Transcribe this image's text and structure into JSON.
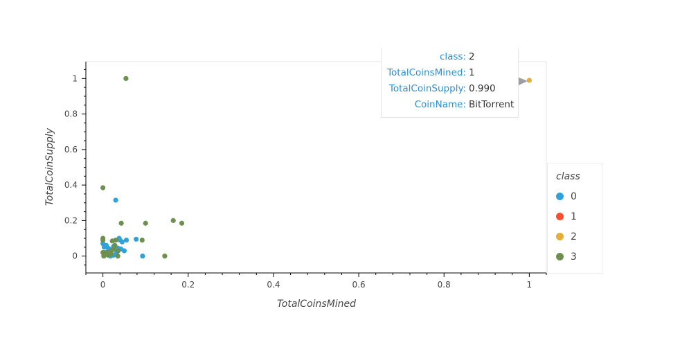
{
  "chart_data": {
    "type": "scatter",
    "title": "",
    "xlabel": "TotalCoinsMined",
    "ylabel": "TotalCoinSupply",
    "xlim": [
      -0.04,
      1.04
    ],
    "ylim": [
      -0.095,
      1.095
    ],
    "x_ticks": [
      "0",
      "0.2",
      "0.4",
      "0.6",
      "0.8",
      "1"
    ],
    "x_tick_values": [
      0,
      0.2,
      0.4,
      0.6,
      0.8,
      1
    ],
    "y_ticks": [
      "0",
      "0.2",
      "0.4",
      "0.6",
      "0.8",
      "1"
    ],
    "y_tick_values": [
      0,
      0.2,
      0.4,
      0.6,
      0.8,
      1
    ],
    "grid": false,
    "legend_position": "right",
    "legend_title": "class",
    "series": [
      {
        "name": "0",
        "color": "#30a2da",
        "points": [
          [
            0.0,
            0.07
          ],
          [
            0.003,
            0.05
          ],
          [
            0.008,
            0.06
          ],
          [
            0.012,
            0.045
          ],
          [
            0.015,
            0.04
          ],
          [
            0.02,
            0.03
          ],
          [
            0.025,
            0.055
          ],
          [
            0.03,
            0.04
          ],
          [
            0.035,
            0.045
          ],
          [
            0.038,
            0.1
          ],
          [
            0.04,
            0.09
          ],
          [
            0.045,
            0.08
          ],
          [
            0.05,
            0.03
          ],
          [
            0.055,
            0.09
          ],
          [
            0.078,
            0.095
          ],
          [
            0.093,
            0.0
          ],
          [
            0.03,
            0.315
          ],
          [
            0.018,
            0.0
          ],
          [
            0.025,
            0.005
          ],
          [
            0.01,
            0.01
          ],
          [
            0.032,
            0.02
          ],
          [
            0.042,
            0.04
          ],
          [
            0.005,
            0.02
          ]
        ]
      },
      {
        "name": "1",
        "color": "#fc4f30",
        "points": []
      },
      {
        "name": "2",
        "color": "#e5ae38",
        "points": [
          [
            1.0,
            0.99
          ]
        ]
      },
      {
        "name": "3",
        "color": "#6d904f",
        "points": [
          [
            0.054,
            1.0
          ],
          [
            0.0,
            0.385
          ],
          [
            0.0,
            0.1
          ],
          [
            0.0,
            0.09
          ],
          [
            0.0,
            0.02
          ],
          [
            0.002,
            0.0
          ],
          [
            0.005,
            0.01
          ],
          [
            0.01,
            0.02
          ],
          [
            0.015,
            0.015
          ],
          [
            0.02,
            0.03
          ],
          [
            0.022,
            0.085
          ],
          [
            0.028,
            0.06
          ],
          [
            0.03,
            0.09
          ],
          [
            0.035,
            0.0
          ],
          [
            0.036,
            0.03
          ],
          [
            0.043,
            0.185
          ],
          [
            0.092,
            0.09
          ],
          [
            0.1,
            0.185
          ],
          [
            0.145,
            0.0
          ],
          [
            0.165,
            0.2
          ],
          [
            0.185,
            0.185
          ],
          [
            0.025,
            0.04
          ],
          [
            0.012,
            0.005
          ],
          [
            0.018,
            0.01
          ]
        ]
      }
    ]
  },
  "tooltip": {
    "rows": [
      {
        "key": "class:",
        "value": "2"
      },
      {
        "key": "TotalCoinsMined:",
        "value": "1"
      },
      {
        "key": "TotalCoinSupply:",
        "value": "0.990"
      },
      {
        "key": "CoinName:",
        "value": "BitTorrent"
      }
    ]
  }
}
